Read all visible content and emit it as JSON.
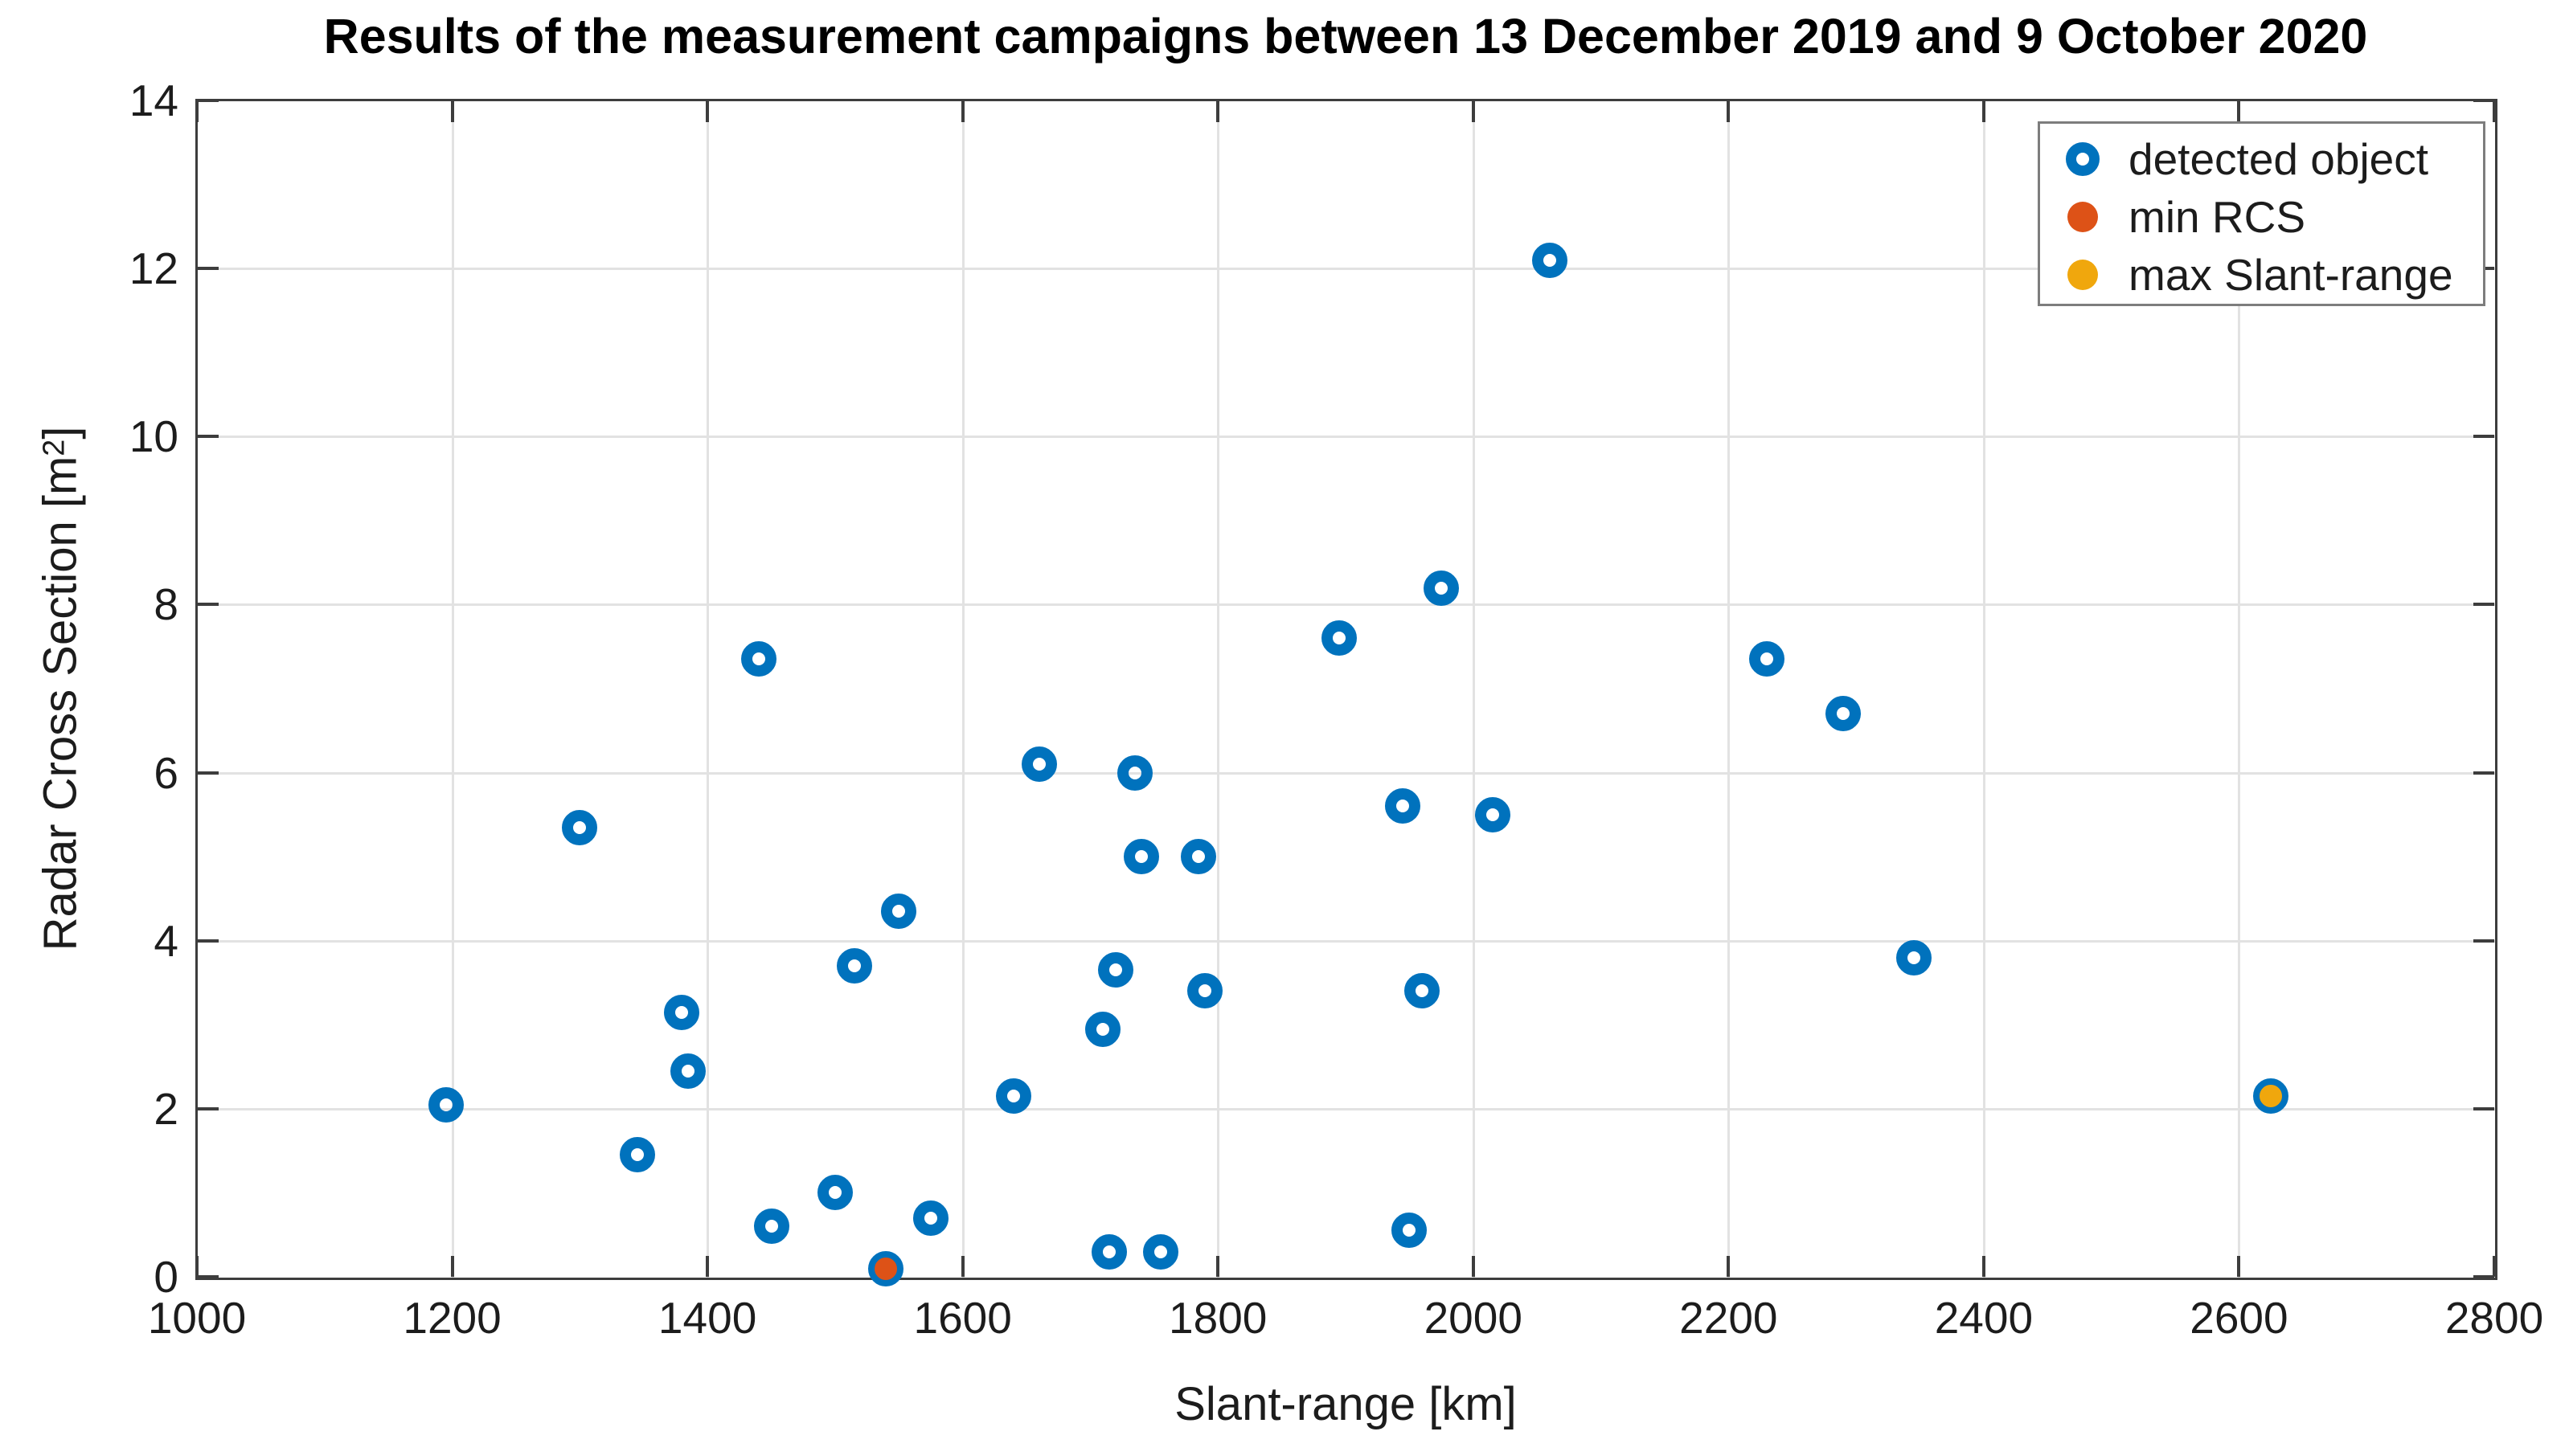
{
  "chart_data": {
    "type": "scatter",
    "title": "Results of the measurement campaigns between 13 December 2019 and 9 October 2020",
    "xlabel": "Slant-range [km]",
    "ylabel": "Radar Cross Section [m²]",
    "ylabel_parts": {
      "pre": "Radar Cross Section [m",
      "sup": "2",
      "post": "]"
    },
    "xlim": [
      1000,
      2800
    ],
    "ylim": [
      0,
      14
    ],
    "xticks": [
      1000,
      1200,
      1400,
      1600,
      1800,
      2000,
      2200,
      2400,
      2600,
      2800
    ],
    "yticks": [
      0,
      2,
      4,
      6,
      8,
      10,
      12,
      14
    ],
    "grid": true,
    "legend_position": "top-right",
    "series": [
      {
        "name": "detected object",
        "marker": "open-circle",
        "color": "#0072BD",
        "points": [
          [
            1195,
            2.05
          ],
          [
            1300,
            5.35
          ],
          [
            1345,
            1.45
          ],
          [
            1380,
            3.15
          ],
          [
            1385,
            2.45
          ],
          [
            1440,
            7.35
          ],
          [
            1450,
            0.6
          ],
          [
            1500,
            1.0
          ],
          [
            1515,
            3.7
          ],
          [
            1550,
            4.35
          ],
          [
            1575,
            0.7
          ],
          [
            1640,
            2.15
          ],
          [
            1660,
            6.1
          ],
          [
            1710,
            2.95
          ],
          [
            1715,
            0.3
          ],
          [
            1720,
            3.65
          ],
          [
            1735,
            6.0
          ],
          [
            1740,
            5.0
          ],
          [
            1755,
            0.3
          ],
          [
            1785,
            5.0
          ],
          [
            1790,
            3.4
          ],
          [
            1895,
            7.6
          ],
          [
            1945,
            5.6
          ],
          [
            1950,
            0.55
          ],
          [
            1960,
            3.4
          ],
          [
            1975,
            8.2
          ],
          [
            2015,
            5.5
          ],
          [
            2060,
            12.1
          ],
          [
            2230,
            7.35
          ],
          [
            2290,
            6.7
          ],
          [
            2345,
            3.8
          ]
        ]
      },
      {
        "name": "min RCS",
        "marker": "filled-circle",
        "color": "#DD5217",
        "edge_color": "#0072BD",
        "points": [
          [
            1540,
            0.1
          ]
        ]
      },
      {
        "name": "max Slant-range",
        "marker": "filled-circle",
        "color": "#F0A70D",
        "edge_color": "#0072BD",
        "points": [
          [
            2625,
            2.15
          ]
        ]
      }
    ]
  },
  "legend": {
    "entries": [
      "detected object",
      "min RCS",
      "max Slant-range"
    ]
  }
}
